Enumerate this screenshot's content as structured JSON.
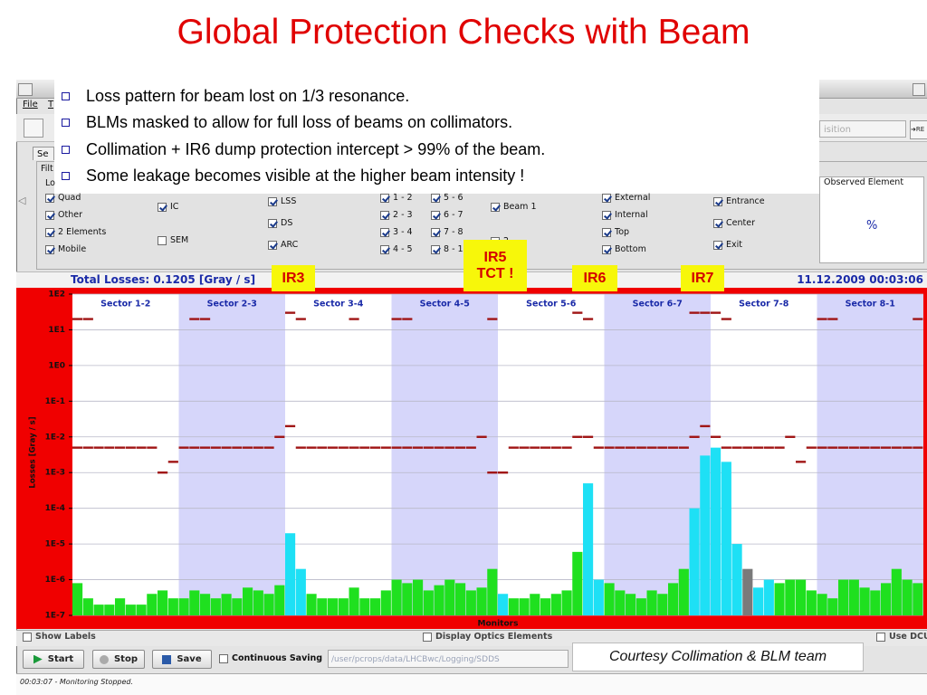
{
  "slide_title": "Global Protection Checks with Beam",
  "bullets": [
    "Loss pattern for beam lost on 1/3 resonance.",
    "BLMs masked to allow for full loss of beams on collimators.",
    "Collimation + IR6 dump protection intercept > 99% of the beam.",
    "Some leakage becomes visible at the higher beam intensity !"
  ],
  "menu": [
    "File",
    "T"
  ],
  "tab": "Se",
  "panel_labels": [
    "Filt",
    "Lo"
  ],
  "filters": {
    "types": [
      "Quad",
      "Other",
      "2 Elements",
      "Mobile"
    ],
    "detectors": [
      "IC",
      "SEM"
    ],
    "regions": [
      "LSS",
      "DS",
      "ARC"
    ],
    "sectors_a": [
      "1 - 2",
      "2 - 3",
      "3 - 4",
      "4 - 5"
    ],
    "sectors_b": [
      "5 - 6",
      "6 - 7",
      "7 - 8",
      "8 - 1"
    ],
    "beams": [
      "Beam 1",
      "2"
    ],
    "positions": [
      "External",
      "Internal",
      "Top",
      "Bottom"
    ],
    "elements": [
      "Entrance",
      "Center",
      "Exit"
    ]
  },
  "observed": {
    "header": "Observed Element",
    "value": "%"
  },
  "acquisition_combo": "isition",
  "refresh_button": "➜RE",
  "status_bar": {
    "total": "Total Losses: 0.1205 [Gray / s]",
    "timestamp": "11.12.2009 00:03:06"
  },
  "annotations": [
    [
      "IR3"
    ],
    [
      "IR5",
      "TCT !"
    ],
    [
      "IR6"
    ],
    [
      "IR7"
    ]
  ],
  "chart_data": {
    "type": "bar",
    "log": true,
    "y_label": "Losses [Gray / s]",
    "x_label": "Monitors",
    "sectors": [
      "Sector 1-2",
      "Sector 2-3",
      "Sector 3-4",
      "Sector 4-5",
      "Sector 5-6",
      "Sector 6-7",
      "Sector 7-8",
      "Sector 8-1"
    ],
    "ylim": [
      1e-07,
      100
    ],
    "yticks": [
      {
        "value": 100,
        "label": "1E2"
      },
      {
        "value": 10,
        "label": "1E1"
      },
      {
        "value": 1,
        "label": "1E0"
      },
      {
        "value": 0.1,
        "label": "1E-1"
      },
      {
        "value": 0.01,
        "label": "1E-2"
      },
      {
        "value": 0.001,
        "label": "1E-3"
      },
      {
        "value": 0.0001,
        "label": "1E-4"
      },
      {
        "value": 1e-05,
        "label": "1E-5"
      },
      {
        "value": 1e-06,
        "label": "1E-6"
      },
      {
        "value": 1e-07,
        "label": "1E-7"
      }
    ],
    "grid": true,
    "palette": {
      "g": "#1fe01f",
      "c": "#1ee0f5",
      "k": "#7a7a7a"
    },
    "color_keys": "ggggggggggggggggggggccggggggggggggggggggcgggggggccggggggggccccckccgggggggggggggggg",
    "values": [
      8e-07,
      3e-07,
      2e-07,
      2e-07,
      3e-07,
      2e-07,
      2e-07,
      4e-07,
      5e-07,
      3e-07,
      3e-07,
      5e-07,
      4e-07,
      3e-07,
      4e-07,
      3e-07,
      6e-07,
      5e-07,
      4e-07,
      7e-07,
      2e-05,
      2e-06,
      4e-07,
      3e-07,
      3e-07,
      3e-07,
      6e-07,
      3e-07,
      3e-07,
      5e-07,
      1e-06,
      8e-07,
      1e-06,
      5e-07,
      7e-07,
      1e-06,
      8e-07,
      5e-07,
      6e-07,
      2e-06,
      4e-07,
      3e-07,
      3e-07,
      4e-07,
      3e-07,
      4e-07,
      5e-07,
      6e-06,
      0.0005,
      1e-06,
      8e-07,
      5e-07,
      4e-07,
      3e-07,
      5e-07,
      4e-07,
      8e-07,
      2e-06,
      0.0001,
      0.003,
      0.005,
      0.002,
      1e-05,
      2e-06,
      6e-07,
      1e-06,
      8e-07,
      1e-06,
      1e-06,
      5e-07,
      4e-07,
      3e-07,
      1e-06,
      1e-06,
      6e-07,
      5e-07,
      8e-07,
      2e-06,
      1e-06,
      8e-07
    ],
    "marks": [
      {
        "color": "#a01515",
        "values": [
          0.005,
          0.005,
          0.005,
          0.005,
          0.005,
          0.005,
          0.005,
          0.005,
          0.001,
          0.002,
          0.005,
          0.005,
          0.005,
          0.005,
          0.005,
          0.005,
          0.005,
          0.005,
          0.005,
          0.01,
          0.02,
          0.005,
          0.005,
          0.005,
          0.005,
          0.005,
          0.005,
          0.005,
          0.005,
          0.005,
          0.005,
          0.005,
          0.005,
          0.005,
          0.005,
          0.005,
          0.005,
          0.005,
          0.01,
          0.001,
          0.001,
          0.005,
          0.005,
          0.005,
          0.005,
          0.005,
          0.005,
          0.01,
          0.01,
          0.005,
          0.005,
          0.005,
          0.005,
          0.005,
          0.005,
          0.005,
          0.005,
          0.005,
          0.01,
          0.02,
          0.01,
          0.005,
          0.005,
          0.005,
          0.005,
          0.005,
          0.005,
          0.01,
          0.002,
          0.005,
          0.005,
          0.005,
          0.005,
          0.005,
          0.005,
          0.005,
          0.005,
          0.005,
          0.005,
          0.005
        ]
      },
      {
        "color": "#a01515",
        "values": [
          20,
          20,
          null,
          null,
          null,
          null,
          null,
          null,
          null,
          null,
          null,
          20,
          20,
          null,
          null,
          null,
          null,
          null,
          null,
          null,
          30,
          20,
          null,
          null,
          null,
          null,
          20,
          null,
          null,
          null,
          20,
          20,
          null,
          null,
          null,
          null,
          null,
          null,
          null,
          20,
          null,
          null,
          null,
          null,
          null,
          null,
          null,
          30,
          20,
          null,
          null,
          null,
          null,
          null,
          null,
          null,
          null,
          null,
          30,
          30,
          30,
          20,
          null,
          null,
          null,
          null,
          null,
          null,
          null,
          null,
          20,
          20,
          null,
          null,
          null,
          null,
          null,
          null,
          null,
          20
        ]
      }
    ]
  },
  "options": [
    "Show Labels",
    "Display Optics Elements",
    "Use DCU"
  ],
  "buttons": [
    "Start",
    "Stop",
    "Save"
  ],
  "continuous_saving": "Continuous Saving",
  "path": "/user/pcrops/data/LHCBwc/Logging/SDDS",
  "credit": "Courtesy Collimation & BLM team",
  "log": "00:03:07 - Monitoring Stopped."
}
